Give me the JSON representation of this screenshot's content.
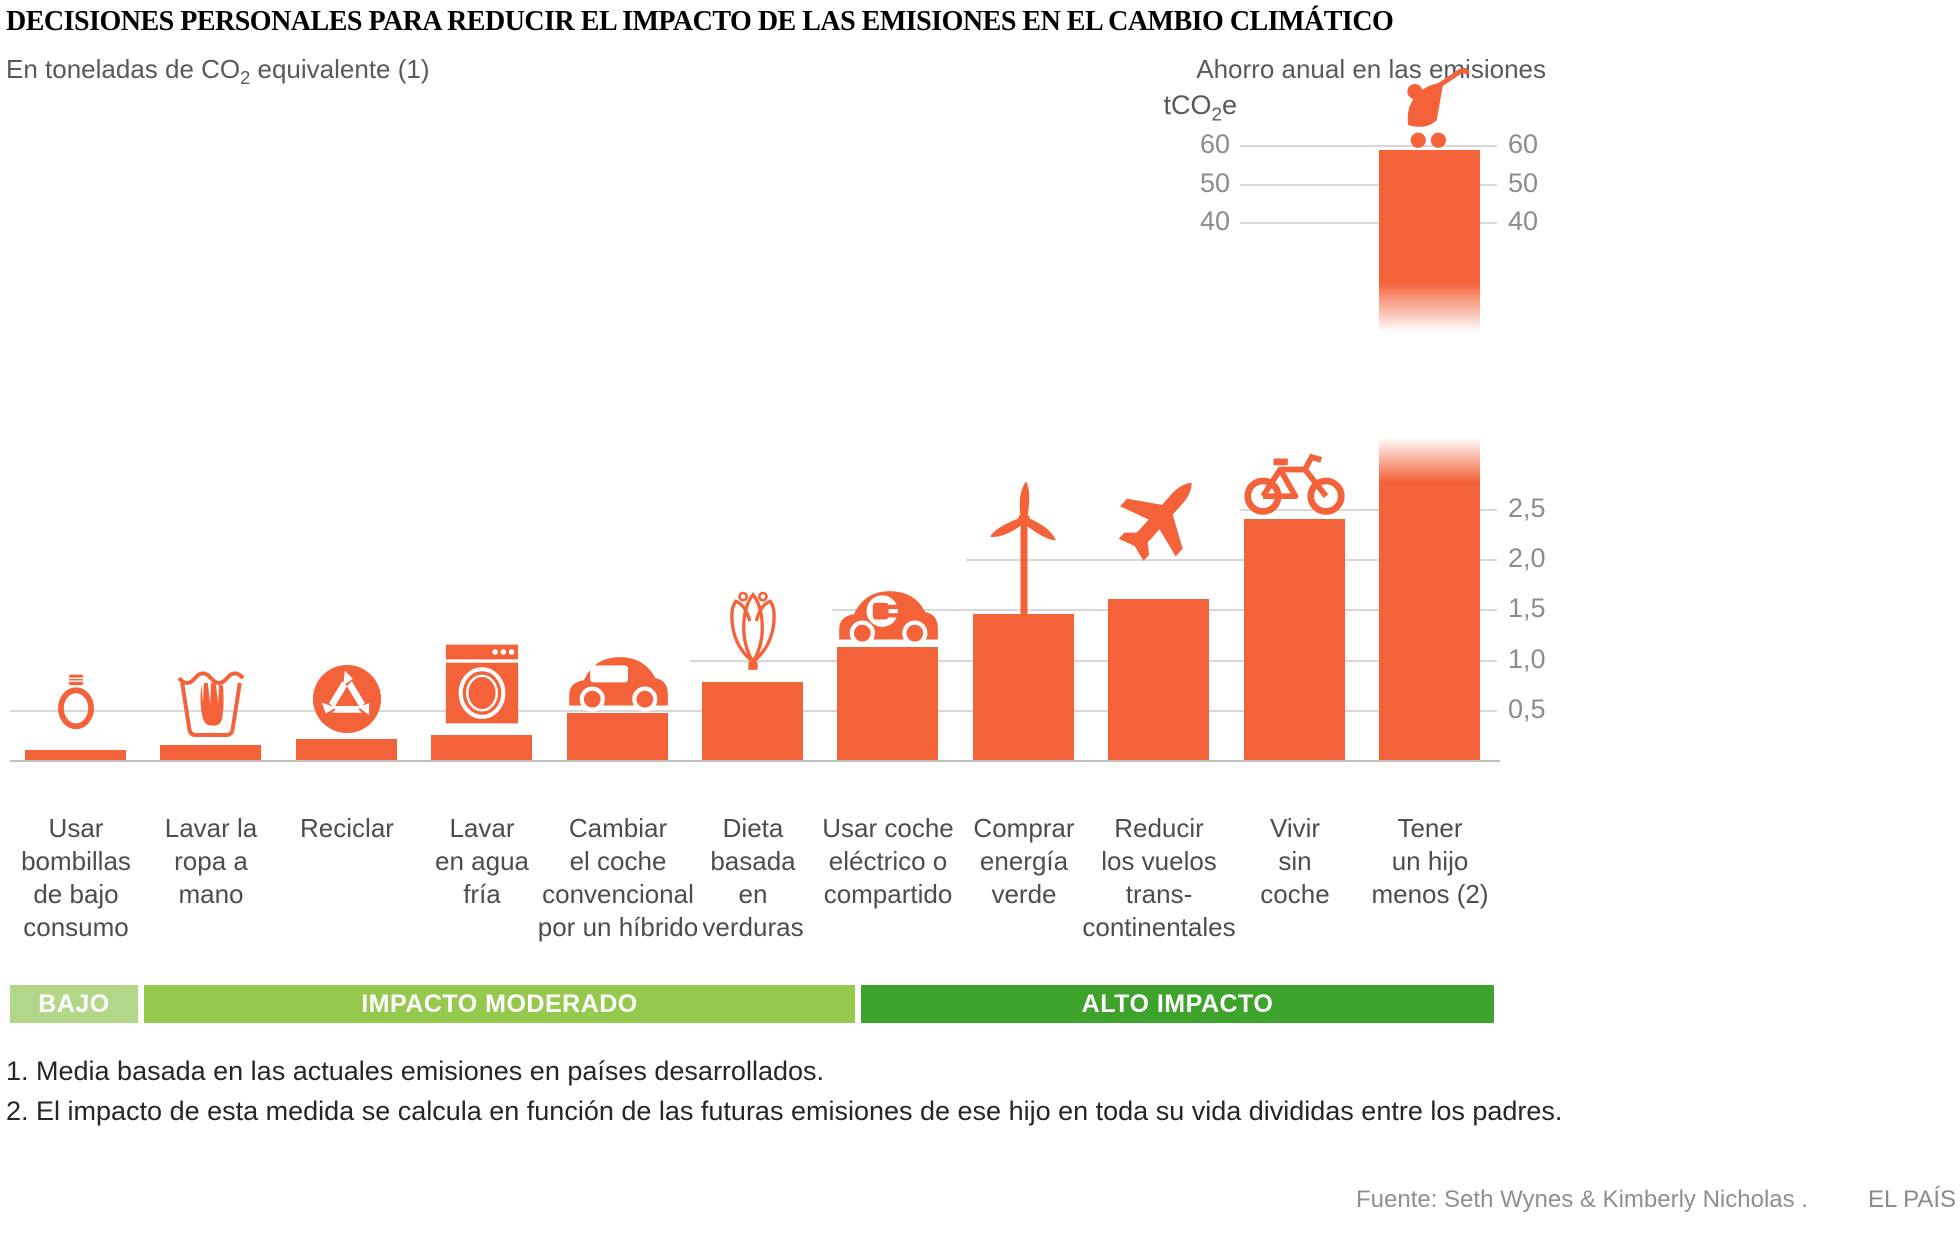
{
  "title": "DECISIONES PERSONALES PARA REDUCIR EL IMPACTO DE LAS EMISIONES EN EL CAMBIO CLIMÁTICO",
  "subtitle": {
    "pre": "En toneladas de CO",
    "sub": "2",
    "post": " equivalente (1)"
  },
  "right_header": "Ahorro anual en las emisiones",
  "unit_label": {
    "pre": "tCO",
    "sub": "2",
    "post": "e"
  },
  "colors": {
    "bar": "#F4623A",
    "band_low": "#B3D789",
    "band_moderate": "#94C94E",
    "band_high": "#3EA32B",
    "gridline": "#D8D8D8",
    "baseline": "#BFBFBF"
  },
  "chart_data": {
    "type": "bar",
    "title": "DECISIONES PERSONALES PARA REDUCIR EL IMPACTO DE LAS EMISIONES EN EL CAMBIO CLIMÁTICO",
    "subtitle": "En toneladas de CO2 equivalente (1)",
    "ylabel": "tCO2e",
    "right_axis_header": "Ahorro anual en las emisiones",
    "grid": true,
    "axis_break": {
      "lower_max": 2.7,
      "upper_min": 37
    },
    "upper_ticks": [
      {
        "value": 60,
        "label": "60"
      },
      {
        "value": 50,
        "label": "50"
      },
      {
        "value": 40,
        "label": "40"
      }
    ],
    "lower_ticks": [
      {
        "value": 2.5,
        "label": "2,5"
      },
      {
        "value": 2.0,
        "label": "2,0"
      },
      {
        "value": 1.5,
        "label": "1,5"
      },
      {
        "value": 1.0,
        "label": "1,0"
      },
      {
        "value": 0.5,
        "label": "0,5"
      }
    ],
    "bars": [
      {
        "key": "bombillas",
        "label_lines": [
          "Usar",
          "bombillas",
          "de bajo",
          "consumo"
        ],
        "value": 0.1,
        "icon": "lightbulb-icon",
        "impact": "BAJO"
      },
      {
        "key": "lavar-mano",
        "label_lines": [
          "Lavar la",
          "ropa a",
          "mano"
        ],
        "value": 0.15,
        "icon": "handwash-icon",
        "impact": "IMPACTO MODERADO"
      },
      {
        "key": "reciclar",
        "label_lines": [
          "Reciclar"
        ],
        "value": 0.21,
        "icon": "recycle-icon",
        "impact": "IMPACTO MODERADO"
      },
      {
        "key": "agua-fria",
        "label_lines": [
          "Lavar",
          "en agua",
          "fría"
        ],
        "value": 0.25,
        "icon": "washing-machine-icon",
        "impact": "IMPACTO MODERADO"
      },
      {
        "key": "hibrido",
        "label_lines": [
          "Cambiar",
          "el coche",
          "convencional",
          "por un híbrido"
        ],
        "value": 0.47,
        "icon": "hybrid-car-icon",
        "impact": "IMPACTO MODERADO"
      },
      {
        "key": "dieta-verduras",
        "label_lines": [
          "Dieta",
          "basada",
          "en",
          "verduras"
        ],
        "value": 0.78,
        "icon": "vegetable-icon",
        "impact": "IMPACTO MODERADO"
      },
      {
        "key": "coche-electrico",
        "label_lines": [
          "Usar coche",
          "eléctrico o",
          "compartido"
        ],
        "value": 1.13,
        "icon": "electric-car-icon",
        "impact": "ALTO IMPACTO"
      },
      {
        "key": "energia-verde",
        "label_lines": [
          "Comprar",
          "energía",
          "verde"
        ],
        "value": 1.45,
        "icon": "wind-turbine-icon",
        "impact": "ALTO IMPACTO"
      },
      {
        "key": "vuelos",
        "label_lines": [
          "Reducir",
          "los vuelos",
          "trans-",
          "continentales"
        ],
        "value": 1.6,
        "icon": "airplane-icon",
        "impact": "ALTO IMPACTO"
      },
      {
        "key": "sin-coche",
        "label_lines": [
          "Vivir",
          "sin",
          "coche"
        ],
        "value": 2.4,
        "icon": "bicycle-icon",
        "impact": "ALTO IMPACTO"
      },
      {
        "key": "hijo-menos",
        "label_lines": [
          "Tener",
          "un hijo",
          "menos (2)"
        ],
        "value": 58.6,
        "icon": "stroller-icon",
        "impact": "ALTO IMPACTO",
        "broken_bar": true
      }
    ]
  },
  "impact_bands": [
    {
      "label": "BAJO"
    },
    {
      "label": "IMPACTO MODERADO"
    },
    {
      "label": "ALTO IMPACTO"
    }
  ],
  "footnotes": [
    "1. Media basada en las actuales emisiones en países desarrollados.",
    "2. El impacto de esta medida se calcula en función de las futuras emisiones de ese hijo en toda su vida divididas entre los padres."
  ],
  "source": "Fuente: Seth Wynes & Kimberly Nicholas .",
  "brand": "EL PAÍS"
}
